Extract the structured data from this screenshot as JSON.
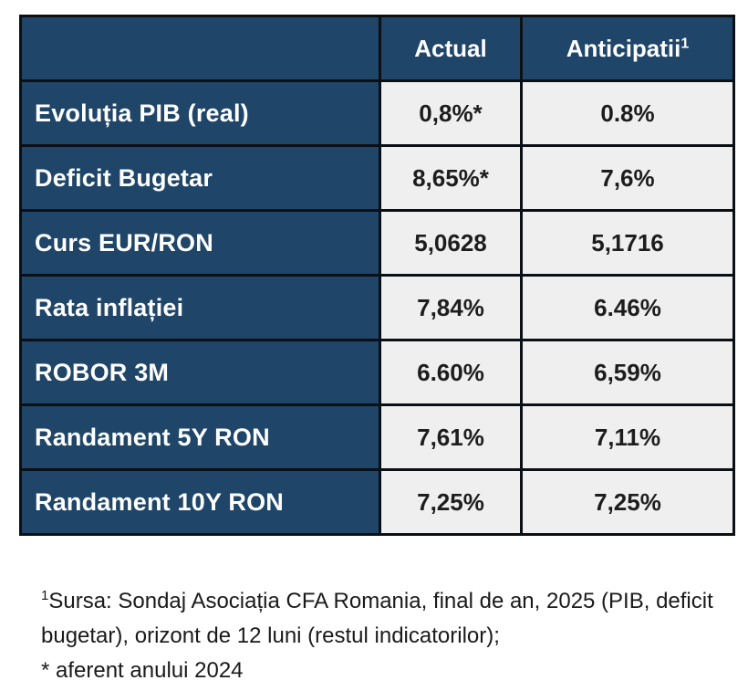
{
  "colors": {
    "header_blue": "#1F4568",
    "cell_gray": "#EFEFEF",
    "border_black": "#0B0F16",
    "label_text_white": "#FFFFFF",
    "value_text_dark": "#1D1D1D",
    "page_background": "#FFFFFF"
  },
  "table": {
    "header": {
      "label_col": "",
      "actual": "Actual",
      "anticipatii": "Anticipatii",
      "anticipatii_sup": "1"
    },
    "rows": [
      {
        "label": "Evoluția PIB (real)",
        "actual": "0,8%*",
        "anticipatii": "0.8%"
      },
      {
        "label": "Deficit Bugetar",
        "actual": "8,65%*",
        "anticipatii": "7,6%"
      },
      {
        "label": "Curs EUR/RON",
        "actual": "5,0628",
        "anticipatii": "5,1716"
      },
      {
        "label": "Rata inflației",
        "actual": "7,84%",
        "anticipatii": "6.46%"
      },
      {
        "label": "ROBOR 3M",
        "actual": "6.60%",
        "anticipatii": "6,59%"
      },
      {
        "label": "Randament 5Y RON",
        "actual": "7,61%",
        "anticipatii": "7,11%"
      },
      {
        "label": "Randament 10Y RON",
        "actual": "7,25%",
        "anticipatii": "7,25%"
      }
    ]
  },
  "footnotes": {
    "sup": "1",
    "line1": "Sursa: Sondaj Asociația CFA Romania, final de an, 2025 (PIB, deficit",
    "line2": "bugetar), orizont de 12 luni (restul indicatorilor);",
    "line3": "* aferent anului 2024"
  }
}
